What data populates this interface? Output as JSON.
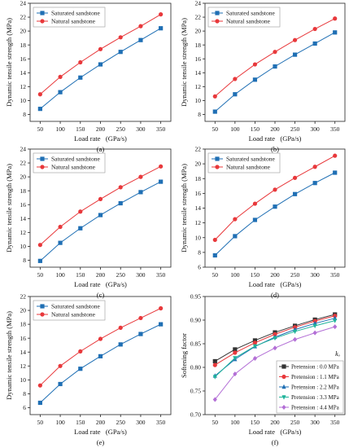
{
  "chart_data": [
    {
      "type": "line",
      "panel_label": "(a)",
      "xlabel": "Load rate   (GPa/s)",
      "ylabel": "Dynamic tensile strength (MPa)",
      "x": [
        50,
        100,
        150,
        200,
        250,
        300,
        350
      ],
      "xlim": [
        25,
        375
      ],
      "xticks": [
        50,
        100,
        150,
        200,
        250,
        300,
        350
      ],
      "ylim": [
        7,
        24
      ],
      "yticks": [
        8,
        10,
        12,
        14,
        16,
        18,
        20,
        22,
        24
      ],
      "legend_position": "top-left",
      "series": [
        {
          "name": "Saturated sandstone",
          "color": "#1f6fb4",
          "marker": "square",
          "values": [
            8.8,
            11.2,
            13.3,
            15.2,
            17.0,
            18.7,
            20.4
          ]
        },
        {
          "name": "Natural sandstone",
          "color": "#e8383b",
          "marker": "circle",
          "values": [
            10.9,
            13.4,
            15.5,
            17.4,
            19.1,
            20.7,
            22.4
          ]
        }
      ]
    },
    {
      "type": "line",
      "panel_label": "(b)",
      "xlabel": "Load rate   (GPa/s)",
      "ylabel": "Dynamic tensile strength (MPa)",
      "x": [
        50,
        100,
        150,
        200,
        250,
        300,
        350
      ],
      "xlim": [
        25,
        375
      ],
      "xticks": [
        50,
        100,
        150,
        200,
        250,
        300,
        350
      ],
      "ylim": [
        7,
        24
      ],
      "yticks": [
        8,
        10,
        12,
        14,
        16,
        18,
        20,
        22,
        24
      ],
      "legend_position": "top-left",
      "series": [
        {
          "name": "Saturated sandstone",
          "color": "#1f6fb4",
          "marker": "square",
          "values": [
            8.4,
            10.9,
            13.0,
            14.9,
            16.6,
            18.2,
            19.8
          ]
        },
        {
          "name": "Natural sandstone",
          "color": "#e8383b",
          "marker": "circle",
          "values": [
            10.6,
            13.1,
            15.2,
            17.0,
            18.7,
            20.3,
            21.8
          ]
        }
      ]
    },
    {
      "type": "line",
      "panel_label": "(c)",
      "xlabel": "Load rate   (GPa/s)",
      "ylabel": "Dynamic tensile strength (MPa)",
      "x": [
        50,
        100,
        150,
        200,
        250,
        300,
        350
      ],
      "xlim": [
        25,
        375
      ],
      "xticks": [
        50,
        100,
        150,
        200,
        250,
        300,
        350
      ],
      "ylim": [
        7,
        24
      ],
      "yticks": [
        8,
        10,
        12,
        14,
        16,
        18,
        20,
        22,
        24
      ],
      "legend_position": "top-left",
      "series": [
        {
          "name": "Saturated sandstone",
          "color": "#1f6fb4",
          "marker": "square",
          "values": [
            7.9,
            10.5,
            12.6,
            14.5,
            16.2,
            17.8,
            19.3
          ]
        },
        {
          "name": "Natural sandstone",
          "color": "#e8383b",
          "marker": "circle",
          "values": [
            10.2,
            12.8,
            15.0,
            16.8,
            18.5,
            20.0,
            21.5
          ]
        }
      ]
    },
    {
      "type": "line",
      "panel_label": "(d)",
      "xlabel": "Load rate   (GPa/s)",
      "ylabel": "Dynamic tensile strength (MPa)",
      "x": [
        50,
        100,
        150,
        200,
        250,
        300,
        350
      ],
      "xlim": [
        25,
        375
      ],
      "xticks": [
        50,
        100,
        150,
        200,
        250,
        300,
        350
      ],
      "ylim": [
        6,
        22
      ],
      "yticks": [
        6,
        8,
        10,
        12,
        14,
        16,
        18,
        20,
        22
      ],
      "legend_position": "top-left",
      "series": [
        {
          "name": "Saturated sandstone",
          "color": "#1f6fb4",
          "marker": "square",
          "values": [
            7.6,
            10.2,
            12.4,
            14.2,
            15.9,
            17.4,
            18.8
          ]
        },
        {
          "name": "Natural sandstone",
          "color": "#e8383b",
          "marker": "circle",
          "values": [
            9.7,
            12.5,
            14.6,
            16.5,
            18.1,
            19.6,
            21.1
          ]
        }
      ]
    },
    {
      "type": "line",
      "panel_label": "(e)",
      "xlabel": "Load rate   (GPa/s)",
      "ylabel": "Dynamic tensile strength (MPa)",
      "x": [
        50,
        100,
        150,
        200,
        250,
        300,
        350
      ],
      "xlim": [
        25,
        375
      ],
      "xticks": [
        50,
        100,
        150,
        200,
        250,
        300,
        350
      ],
      "ylim": [
        5,
        22
      ],
      "yticks": [
        6,
        8,
        10,
        12,
        14,
        16,
        18,
        20,
        22
      ],
      "legend_position": "top-left",
      "series": [
        {
          "name": "Saturated sandstone",
          "color": "#1f6fb4",
          "marker": "square",
          "values": [
            6.7,
            9.4,
            11.6,
            13.4,
            15.1,
            16.6,
            18.0
          ]
        },
        {
          "name": "Natural sandstone",
          "color": "#e8383b",
          "marker": "circle",
          "values": [
            9.2,
            12.0,
            14.1,
            15.9,
            17.5,
            18.9,
            20.3
          ]
        }
      ]
    },
    {
      "type": "line",
      "panel_label": "(f)",
      "xlabel": "Load rate   (GPa/s)",
      "ylabel": "Softening factor",
      "x": [
        50,
        100,
        150,
        200,
        250,
        300,
        350
      ],
      "xlim": [
        25,
        375
      ],
      "xticks": [
        50,
        100,
        150,
        200,
        250,
        300,
        350
      ],
      "ylim": [
        0.7,
        0.95
      ],
      "yticks": [
        0.7,
        0.75,
        0.8,
        0.85,
        0.9,
        0.95
      ],
      "ytick_decimals": 2,
      "legend_position": "bottom-right",
      "legend_title": "kₒ",
      "series": [
        {
          "name": "Pretension : 0.0 MPa",
          "color": "#333333",
          "marker": "square",
          "values": [
            0.813,
            0.838,
            0.857,
            0.874,
            0.888,
            0.901,
            0.912
          ]
        },
        {
          "name": "Pretension : 1.1 MPa",
          "color": "#e8383b",
          "marker": "circle",
          "values": [
            0.805,
            0.831,
            0.852,
            0.87,
            0.885,
            0.898,
            0.909
          ]
        },
        {
          "name": "Pretension : 2.2 MPa",
          "color": "#1f6fb4",
          "marker": "triangle",
          "values": [
            0.782,
            0.817,
            0.844,
            0.864,
            0.88,
            0.893,
            0.904
          ]
        },
        {
          "name": "Pretension : 3.3 MPa",
          "color": "#1fb39a",
          "marker": "triangle-down",
          "values": [
            0.78,
            0.82,
            0.845,
            0.862,
            0.876,
            0.888,
            0.899
          ]
        },
        {
          "name": "Pretension : 4.4 MPa",
          "color": "#b36fd6",
          "marker": "diamond",
          "values": [
            0.732,
            0.786,
            0.819,
            0.841,
            0.859,
            0.873,
            0.886
          ]
        }
      ]
    }
  ]
}
